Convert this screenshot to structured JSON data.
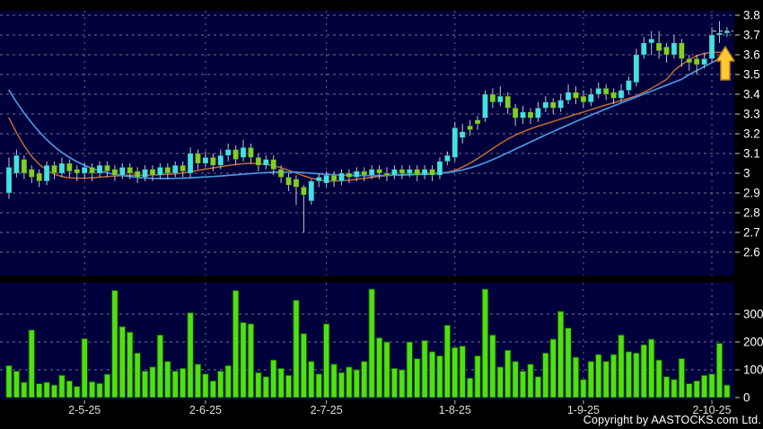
{
  "footer": {
    "copyright": "Copyright by AASTOCKS.com Ltd."
  },
  "colors": {
    "background": "#000000",
    "panel_bg": "#00003C",
    "grid": "#9898AC",
    "up_candle": "#45E1E1",
    "down_candle": "#7FD024",
    "wick": "#C4C4CC",
    "volume_bar": "#52DE14",
    "volume_bar_edge": "#0B5800",
    "ma_short": "#C06A32",
    "ma_long": "#4C95E0",
    "axis_text": "#FFFFFF",
    "x_label_text": "#DDDDDD",
    "arrow_fill": "#FFC837",
    "arrow_edge": "#B97C12",
    "last_price_line": "#D8D8D8"
  },
  "chart_data": {
    "type": "candlestick",
    "title": "",
    "legend_position": "none",
    "grid": true,
    "panels": [
      "price",
      "volume"
    ],
    "price_axis": {
      "min": 2.6,
      "max": 3.8,
      "ticks": [
        "3.8",
        "3.7",
        "3.6",
        "3.5",
        "3.4",
        "3.3",
        "3.2",
        "3.1",
        "3",
        "2.9",
        "2.8",
        "2.7",
        "2.6"
      ],
      "tick_values": [
        3.8,
        3.7,
        3.6,
        3.5,
        3.4,
        3.3,
        3.2,
        3.1,
        3.0,
        2.9,
        2.8,
        2.7,
        2.6
      ],
      "position": "right"
    },
    "volume_axis": {
      "min": 0,
      "max": 400,
      "ticks": [
        "300",
        "200",
        "100",
        "0"
      ],
      "tick_values": [
        300,
        200,
        100,
        0
      ],
      "position": "right"
    },
    "x_ticks": [
      {
        "label": "2-5-25",
        "index": 10
      },
      {
        "label": "2-6-25",
        "index": 26
      },
      {
        "label": "2-7-25",
        "index": 42
      },
      {
        "label": "1-8-25",
        "index": 59
      },
      {
        "label": "1-9-25",
        "index": 76
      },
      {
        "label": "2-10-25",
        "index": 93
      }
    ],
    "last_price": 3.72,
    "signal": {
      "type": "up-arrow",
      "price_at": 3.57
    },
    "candles_ohlc_format": [
      "open",
      "high",
      "low",
      "close"
    ],
    "candles": [
      [
        2.9,
        3.08,
        2.87,
        3.03
      ],
      [
        3.0,
        3.12,
        2.98,
        3.09
      ],
      [
        3.07,
        3.09,
        2.97,
        3.0
      ],
      [
        3.02,
        3.04,
        2.95,
        2.98
      ],
      [
        3.0,
        3.02,
        2.93,
        2.96
      ],
      [
        2.96,
        3.06,
        2.94,
        3.04
      ],
      [
        3.04,
        3.06,
        2.97,
        3.0
      ],
      [
        3.0,
        3.08,
        2.98,
        3.05
      ],
      [
        3.05,
        3.07,
        2.98,
        3.01
      ],
      [
        3.02,
        3.04,
        2.96,
        3.0
      ],
      [
        3.0,
        3.05,
        2.97,
        3.03
      ],
      [
        3.03,
        3.05,
        2.96,
        3.0
      ],
      [
        3.0,
        3.06,
        2.98,
        3.04
      ],
      [
        3.04,
        3.06,
        2.98,
        3.01
      ],
      [
        3.02,
        3.04,
        2.96,
        2.99
      ],
      [
        2.99,
        3.05,
        2.97,
        3.03
      ],
      [
        3.03,
        3.05,
        2.97,
        3.0
      ],
      [
        3.01,
        3.03,
        2.95,
        2.98
      ],
      [
        2.98,
        3.04,
        2.96,
        3.02
      ],
      [
        3.02,
        3.04,
        2.96,
        2.99
      ],
      [
        2.99,
        3.05,
        2.97,
        3.03
      ],
      [
        3.03,
        3.05,
        2.97,
        3.0
      ],
      [
        3.0,
        3.06,
        2.98,
        3.04
      ],
      [
        3.04,
        3.06,
        2.98,
        3.01
      ],
      [
        3.0,
        3.13,
        2.98,
        3.1
      ],
      [
        3.1,
        3.12,
        3.02,
        3.05
      ],
      [
        3.05,
        3.11,
        3.03,
        3.08
      ],
      [
        3.08,
        3.1,
        3.01,
        3.04
      ],
      [
        3.04,
        3.12,
        3.02,
        3.09
      ],
      [
        3.09,
        3.15,
        3.06,
        3.12
      ],
      [
        3.12,
        3.14,
        3.04,
        3.07
      ],
      [
        3.08,
        3.17,
        3.06,
        3.13
      ],
      [
        3.13,
        3.15,
        3.05,
        3.08
      ],
      [
        3.08,
        3.1,
        3.01,
        3.04
      ],
      [
        3.04,
        3.09,
        3.02,
        3.07
      ],
      [
        3.07,
        3.09,
        2.99,
        3.02
      ],
      [
        3.02,
        3.04,
        2.95,
        2.98
      ],
      [
        2.98,
        3.0,
        2.91,
        2.94
      ],
      [
        2.97,
        2.99,
        2.84,
        2.93
      ],
      [
        2.93,
        2.94,
        2.7,
        2.89
      ],
      [
        2.86,
        2.97,
        2.84,
        2.96
      ],
      [
        2.96,
        3.0,
        2.93,
        2.98
      ],
      [
        2.95,
        3.01,
        2.93,
        2.99
      ],
      [
        2.99,
        3.01,
        2.93,
        2.96
      ],
      [
        2.96,
        3.02,
        2.94,
        3.0
      ],
      [
        3.0,
        3.02,
        2.95,
        2.98
      ],
      [
        2.98,
        3.03,
        2.96,
        3.01
      ],
      [
        3.01,
        3.03,
        2.96,
        2.99
      ],
      [
        2.99,
        3.04,
        2.97,
        3.02
      ],
      [
        3.02,
        3.04,
        2.97,
        3.0
      ],
      [
        3.0,
        3.03,
        2.96,
        2.99
      ],
      [
        2.99,
        3.04,
        2.97,
        3.02
      ],
      [
        3.02,
        3.04,
        2.97,
        3.0
      ],
      [
        3.0,
        3.04,
        2.98,
        3.02
      ],
      [
        3.02,
        3.04,
        2.96,
        2.99
      ],
      [
        2.99,
        3.04,
        2.97,
        3.02
      ],
      [
        3.02,
        3.04,
        2.96,
        2.99
      ],
      [
        2.99,
        3.08,
        2.97,
        3.06
      ],
      [
        3.06,
        3.11,
        3.04,
        3.09
      ],
      [
        3.08,
        3.26,
        3.06,
        3.23
      ],
      [
        3.18,
        3.25,
        3.15,
        3.21
      ],
      [
        3.24,
        3.27,
        3.19,
        3.22
      ],
      [
        3.27,
        3.29,
        3.22,
        3.25
      ],
      [
        3.28,
        3.42,
        3.26,
        3.4
      ],
      [
        3.4,
        3.43,
        3.33,
        3.36
      ],
      [
        3.36,
        3.44,
        3.34,
        3.39
      ],
      [
        3.39,
        3.41,
        3.3,
        3.33
      ],
      [
        3.33,
        3.35,
        3.24,
        3.28
      ],
      [
        3.28,
        3.34,
        3.25,
        3.31
      ],
      [
        3.31,
        3.33,
        3.25,
        3.28
      ],
      [
        3.28,
        3.36,
        3.26,
        3.33
      ],
      [
        3.33,
        3.39,
        3.31,
        3.36
      ],
      [
        3.36,
        3.38,
        3.3,
        3.33
      ],
      [
        3.33,
        3.4,
        3.31,
        3.37
      ],
      [
        3.37,
        3.45,
        3.35,
        3.41
      ],
      [
        3.41,
        3.44,
        3.35,
        3.38
      ],
      [
        3.39,
        3.42,
        3.33,
        3.36
      ],
      [
        3.36,
        3.43,
        3.34,
        3.4
      ],
      [
        3.4,
        3.46,
        3.38,
        3.43
      ],
      [
        3.43,
        3.45,
        3.37,
        3.4
      ],
      [
        3.41,
        3.43,
        3.35,
        3.38
      ],
      [
        3.38,
        3.45,
        3.36,
        3.42
      ],
      [
        3.42,
        3.49,
        3.4,
        3.47
      ],
      [
        3.46,
        3.63,
        3.44,
        3.6
      ],
      [
        3.6,
        3.69,
        3.58,
        3.66
      ],
      [
        3.66,
        3.72,
        3.6,
        3.68
      ],
      [
        3.66,
        3.72,
        3.58,
        3.62
      ],
      [
        3.64,
        3.66,
        3.56,
        3.6
      ],
      [
        3.6,
        3.7,
        3.58,
        3.66
      ],
      [
        3.66,
        3.68,
        3.54,
        3.58
      ],
      [
        3.58,
        3.6,
        3.52,
        3.56
      ],
      [
        3.58,
        3.6,
        3.5,
        3.55
      ],
      [
        3.55,
        3.61,
        3.53,
        3.58
      ],
      [
        3.58,
        3.74,
        3.56,
        3.7
      ],
      [
        3.7,
        3.77,
        3.66,
        3.71
      ],
      [
        3.71,
        3.74,
        3.69,
        3.72
      ]
    ],
    "volumes": [
      115,
      95,
      55,
      243,
      50,
      55,
      45,
      80,
      60,
      40,
      212,
      57,
      51,
      84,
      385,
      255,
      235,
      160,
      95,
      110,
      225,
      130,
      95,
      105,
      305,
      120,
      85,
      60,
      95,
      115,
      385,
      270,
      265,
      90,
      75,
      135,
      105,
      80,
      350,
      230,
      130,
      85,
      265,
      120,
      90,
      110,
      100,
      130,
      390,
      215,
      200,
      105,
      100,
      200,
      140,
      205,
      165,
      150,
      260,
      180,
      185,
      70,
      150,
      390,
      225,
      110,
      170,
      130,
      95,
      120,
      75,
      160,
      210,
      310,
      250,
      145,
      65,
      130,
      155,
      130,
      155,
      225,
      165,
      160,
      190,
      210,
      135,
      75,
      65,
      140,
      50,
      60,
      80,
      85,
      195,
      45
    ],
    "ma_short": [
      3.28,
      3.205,
      3.14,
      3.085,
      3.045,
      3.015,
      2.995,
      2.983,
      2.977,
      2.975,
      2.975,
      2.977,
      2.98,
      2.983,
      2.986,
      2.988,
      2.99,
      2.99,
      2.99,
      2.991,
      2.992,
      2.994,
      2.997,
      3.001,
      3.007,
      3.014,
      3.021,
      3.027,
      3.033,
      3.039,
      3.044,
      3.048,
      3.05,
      3.049,
      3.045,
      3.038,
      3.028,
      3.015,
      3.001,
      2.987,
      2.975,
      2.966,
      2.961,
      2.96,
      2.962,
      2.965,
      2.969,
      2.974,
      2.979,
      2.984,
      2.988,
      2.991,
      2.994,
      2.997,
      2.999,
      3.0,
      3.0,
      3.001,
      3.005,
      3.015,
      3.031,
      3.051,
      3.074,
      3.099,
      3.125,
      3.15,
      3.173,
      3.193,
      3.21,
      3.225,
      3.238,
      3.25,
      3.262,
      3.274,
      3.286,
      3.298,
      3.31,
      3.322,
      3.334,
      3.346,
      3.357,
      3.368,
      3.379,
      3.392,
      3.41,
      3.43,
      3.452,
      3.475,
      3.52,
      3.55,
      3.575,
      3.595,
      3.607,
      3.612,
      3.612,
      3.607
    ],
    "ma_long": [
      3.42,
      3.36,
      3.305,
      3.255,
      3.21,
      3.17,
      3.135,
      3.105,
      3.08,
      3.058,
      3.04,
      3.025,
      3.012,
      3.002,
      2.994,
      2.988,
      2.983,
      2.979,
      2.976,
      2.974,
      2.973,
      2.973,
      2.974,
      2.975,
      2.977,
      2.979,
      2.981,
      2.983,
      2.986,
      2.989,
      2.992,
      2.995,
      2.998,
      3.001,
      3.003,
      3.005,
      3.006,
      3.006,
      3.005,
      3.003,
      3.0,
      2.997,
      2.994,
      2.992,
      2.99,
      2.989,
      2.988,
      2.988,
      2.988,
      2.988,
      2.989,
      2.99,
      2.991,
      2.992,
      2.993,
      2.994,
      2.996,
      2.999,
      3.003,
      3.009,
      3.017,
      3.027,
      3.039,
      3.053,
      3.069,
      3.086,
      3.104,
      3.122,
      3.14,
      3.158,
      3.176,
      3.194,
      3.211,
      3.228,
      3.245,
      3.262,
      3.278,
      3.294,
      3.31,
      3.326,
      3.341,
      3.356,
      3.371,
      3.386,
      3.401,
      3.416,
      3.431,
      3.446,
      3.461,
      3.476,
      3.5,
      3.52,
      3.54,
      3.56,
      3.58,
      3.6
    ]
  }
}
